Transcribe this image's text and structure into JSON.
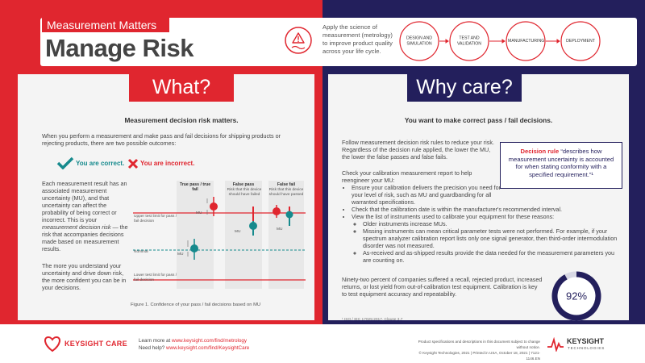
{
  "header": {
    "tag": "Measurement Matters",
    "title": "Manage Risk",
    "intro": "Apply the science of measurement (metrology) to improve product quality across your life cycle.",
    "stages": [
      "DESIGN AND SIMULATION",
      "TEST AND VALIDATION",
      "MANUFACTURING",
      "DEPLOYMENT"
    ]
  },
  "what": {
    "tab": "What?",
    "heading": "Measurement decision risk matters.",
    "lead": "When you perform a measurement and make pass and fail decisions for shipping products or rejecting products, there are two possible outcomes:",
    "correct": "You are correct.",
    "incorrect": "You are incorrect.",
    "body_1": "Each measurement result has an associated measurement uncertainty (MU), and that uncertainty can affect the probability of being correct or incorrect. This is your",
    "body_em": "measurement decision risk",
    "body_2": "— the risk that accompanies decisions made based on measurement results.",
    "body_3": "The more you understand your uncertainty and drive down risk, the more confident you can be in your decisions.",
    "figure": {
      "columns": [
        {
          "title": "True pass / true fail"
        },
        {
          "title": "False pass",
          "note": "Risk that this device should have failed"
        },
        {
          "title": "False fail",
          "note": "Risk that this device should have passed"
        }
      ],
      "limits": {
        "upper": "Upper test limit for pass / fail decision",
        "nominal": "Nominal",
        "lower": "Lower test limit for pass / fail decision"
      },
      "mu_labels": [
        "MU",
        "MU",
        "MU",
        "MU"
      ],
      "caption": "Figure 1. Confidence of your pass / fail decisions based on MU"
    }
  },
  "why": {
    "tab": "Why care?",
    "heading": "You want to make correct pass / fail decisions.",
    "p1": "Follow measurement decision risk rules to reduce your risk. Regardless of the decision rule applied, the lower the MU, the lower the false passes and false fails.",
    "p2": "Check your calibration measurement report to help reengineer your MU:",
    "bullets": [
      {
        "text": "Ensure your calibration delivers the precision you need for your level of risk, such as MU and guardbanding for all warranted specifications."
      },
      {
        "text": "Check that the calibration date is within the manufacturer's recommended interval."
      },
      {
        "text": "View the list of instruments used to calibrate your equipment for these reasons:",
        "sub": [
          "Older instruments increase MUs.",
          "Missing instruments can mean critical parameter tests were not performed. For example, if your spectrum analyzer calibration report lists only one signal generator, then third-order intermodulation disorder was not measured.",
          "As-received and as-shipped results provide the data needed for the measurement parameters you are counting on."
        ]
      }
    ],
    "p3": "Ninety-two percent of companies suffered a recall, rejected product, increased returns, or lost yield from out-of-calibration test equipment. Calibration is key to test equipment accuracy and repeatability.",
    "callout": {
      "term": "Decision rule",
      "text": "“describes how measurement uncertainty is accounted for when stating conformity with a specified requirement.”¹"
    },
    "stat": {
      "value": 92,
      "label": "92%"
    },
    "footnote": "¹ ISO / IEC 17025:2017, Clause 3.7"
  },
  "footer": {
    "care_logo": "KEYSIGHT CARE",
    "learn": "Learn more at",
    "learn_url": "www.keysight.com/find/metrology",
    "help": "Need help?",
    "help_url": "www.keysight.com/find/KeysightCare",
    "legal_1": "Product specifications and descriptions in this document subject to change without notice.",
    "legal_2": "© Keysight Technologies, 2021  |  Printed in USA, October 18, 2021  |  7121-1146.EN",
    "brand": "KEYSIGHT",
    "brand_sub": "TECHNOLOGIES"
  }
}
